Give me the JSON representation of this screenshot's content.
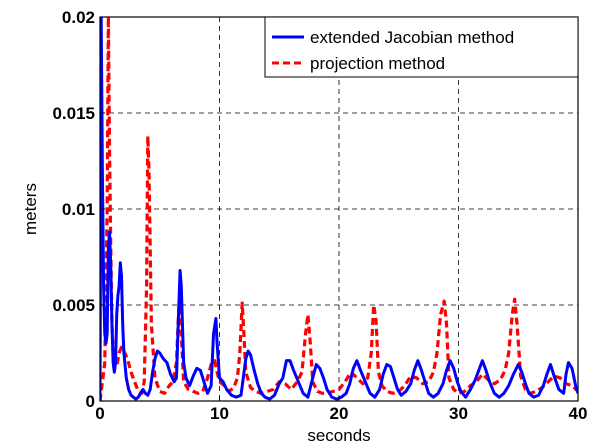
{
  "chart_data": {
    "type": "line",
    "xlabel": "seconds",
    "ylabel": "meters",
    "xlim": [
      0,
      40
    ],
    "ylim": [
      0,
      0.02
    ],
    "x_ticks": [
      0,
      10,
      20,
      30,
      40
    ],
    "x_tick_labels": [
      "0",
      "10",
      "20",
      "30",
      "40"
    ],
    "y_ticks": [
      0,
      0.005,
      0.01,
      0.015,
      0.02
    ],
    "y_tick_labels": [
      "0",
      "0.005",
      "0.01",
      "0.015",
      "0.02"
    ],
    "grid": true,
    "legend_position": "top-right",
    "series": [
      {
        "name": "extended Jacobian method",
        "color": "#0000ff",
        "style": "solid",
        "x": [
          0.0,
          0.1,
          0.2,
          0.3,
          0.4,
          0.5,
          0.6,
          0.7,
          0.8,
          0.9,
          1.0,
          1.1,
          1.2,
          1.3,
          1.4,
          1.5,
          1.6,
          1.7,
          1.8,
          1.9,
          2.0,
          2.2,
          2.4,
          2.6,
          2.8,
          3.0,
          3.2,
          3.4,
          3.6,
          3.8,
          4.0,
          4.2,
          4.4,
          4.6,
          4.8,
          5.0,
          5.3,
          5.6,
          5.9,
          6.2,
          6.4,
          6.6,
          6.7,
          6.8,
          7.0,
          7.2,
          7.5,
          7.8,
          8.1,
          8.4,
          8.7,
          9.0,
          9.3,
          9.5,
          9.7,
          9.8,
          10.0,
          10.3,
          10.6,
          11.0,
          11.4,
          11.8,
          12.2,
          12.4,
          12.6,
          12.9,
          13.2,
          13.5,
          13.8,
          14.2,
          14.6,
          15.0,
          15.3,
          15.6,
          15.9,
          16.2,
          16.6,
          17.0,
          17.4,
          17.8,
          18.1,
          18.4,
          18.7,
          19.0,
          19.4,
          19.8,
          20.2,
          20.6,
          20.9,
          21.2,
          21.5,
          21.8,
          22.2,
          22.6,
          23.0,
          23.4,
          23.7,
          24.0,
          24.3,
          24.6,
          24.9,
          25.2,
          25.6,
          26.0,
          26.3,
          26.6,
          26.9,
          27.2,
          27.5,
          27.9,
          28.3,
          28.7,
          29.0,
          29.3,
          29.6,
          29.9,
          30.2,
          30.6,
          31.0,
          31.4,
          31.7,
          32.0,
          32.3,
          32.6,
          33.0,
          33.4,
          33.8,
          34.2,
          34.6,
          35.0,
          35.3,
          35.6,
          35.9,
          36.3,
          36.7,
          37.1,
          37.4,
          37.7,
          38.0,
          38.4,
          38.8,
          39.0,
          39.2,
          39.5,
          39.8,
          40.0
        ],
        "y": [
          0.0,
          0.02,
          0.012,
          0.006,
          0.0035,
          0.003,
          0.0035,
          0.008,
          0.0088,
          0.007,
          0.004,
          0.002,
          0.0015,
          0.002,
          0.0045,
          0.0055,
          0.006,
          0.0072,
          0.0065,
          0.004,
          0.0025,
          0.0012,
          0.0006,
          0.0003,
          0.0002,
          0.0001,
          0.0002,
          0.0004,
          0.0006,
          0.0004,
          0.0003,
          0.0006,
          0.0015,
          0.0022,
          0.0026,
          0.0025,
          0.0022,
          0.002,
          0.0014,
          0.001,
          0.0012,
          0.005,
          0.0068,
          0.006,
          0.002,
          0.0012,
          0.0008,
          0.0013,
          0.0017,
          0.0016,
          0.001,
          0.0004,
          0.0008,
          0.0035,
          0.0043,
          0.003,
          0.0012,
          0.001,
          0.0006,
          0.0003,
          0.0002,
          0.0003,
          0.0022,
          0.0026,
          0.0024,
          0.0016,
          0.0009,
          0.0004,
          0.0002,
          0.0001,
          0.0003,
          0.0009,
          0.0012,
          0.0021,
          0.0021,
          0.0016,
          0.001,
          0.0004,
          0.0002,
          0.0012,
          0.0019,
          0.0017,
          0.0012,
          0.0006,
          0.0002,
          0.0001,
          0.0002,
          0.0004,
          0.0009,
          0.0017,
          0.0021,
          0.0016,
          0.001,
          0.0004,
          0.0002,
          0.0006,
          0.0014,
          0.0019,
          0.0018,
          0.0012,
          0.0006,
          0.0003,
          0.0005,
          0.0009,
          0.0016,
          0.0021,
          0.0016,
          0.001,
          0.0004,
          0.0002,
          0.0004,
          0.0009,
          0.0016,
          0.0021,
          0.0017,
          0.001,
          0.0005,
          0.0002,
          0.0006,
          0.0011,
          0.0016,
          0.0021,
          0.0016,
          0.001,
          0.0004,
          0.0002,
          0.0004,
          0.0008,
          0.0014,
          0.0019,
          0.0015,
          0.0009,
          0.0004,
          0.0002,
          0.0003,
          0.0008,
          0.0014,
          0.0019,
          0.0013,
          0.0006,
          0.0004,
          0.0014,
          0.002,
          0.0017,
          0.0008,
          0.0004
        ]
      },
      {
        "name": "projection method",
        "color": "#ff0000",
        "style": "dashed",
        "x": [
          0.0,
          0.2,
          0.4,
          0.6,
          0.7,
          0.8,
          0.9,
          1.0,
          1.1,
          1.2,
          1.4,
          1.6,
          1.8,
          2.0,
          2.3,
          2.6,
          2.9,
          3.2,
          3.5,
          3.7,
          3.9,
          4.0,
          4.1,
          4.3,
          4.6,
          5.0,
          5.4,
          5.8,
          6.1,
          6.4,
          6.6,
          6.8,
          7.0,
          7.4,
          7.8,
          8.2,
          8.6,
          9.0,
          9.3,
          9.6,
          9.8,
          10.0,
          10.4,
          10.8,
          11.2,
          11.5,
          11.7,
          11.9,
          12.0,
          12.2,
          12.6,
          13.0,
          13.5,
          14.0,
          14.5,
          15.0,
          15.5,
          16.0,
          16.5,
          16.9,
          17.2,
          17.4,
          17.6,
          17.8,
          18.2,
          18.6,
          19.0,
          19.5,
          20.0,
          20.5,
          21.0,
          21.5,
          22.0,
          22.4,
          22.7,
          22.9,
          23.1,
          23.3,
          23.6,
          24.0,
          24.5,
          25.0,
          25.5,
          26.0,
          26.5,
          27.0,
          27.5,
          27.9,
          28.2,
          28.5,
          28.8,
          29.0,
          29.2,
          29.6,
          30.0,
          30.5,
          31.0,
          31.5,
          32.0,
          32.5,
          33.0,
          33.5,
          33.9,
          34.2,
          34.5,
          34.7,
          34.9,
          35.2,
          35.6,
          36.0,
          36.5,
          37.0,
          37.5,
          38.0,
          38.5,
          39.0,
          39.5,
          40.0
        ],
        "y": [
          0.0,
          0.001,
          0.002,
          0.01,
          0.02,
          0.013,
          0.008,
          0.004,
          0.0025,
          0.002,
          0.0018,
          0.0025,
          0.0028,
          0.0026,
          0.0022,
          0.0015,
          0.001,
          0.0005,
          0.0004,
          0.001,
          0.006,
          0.0138,
          0.012,
          0.004,
          0.0012,
          0.0005,
          0.0004,
          0.0008,
          0.001,
          0.002,
          0.005,
          0.0035,
          0.001,
          0.0006,
          0.0005,
          0.0004,
          0.0005,
          0.0012,
          0.0019,
          0.0021,
          0.0015,
          0.001,
          0.0008,
          0.0005,
          0.0007,
          0.0012,
          0.0025,
          0.0051,
          0.004,
          0.0015,
          0.0007,
          0.0005,
          0.0004,
          0.0005,
          0.0006,
          0.001,
          0.0009,
          0.0006,
          0.001,
          0.0015,
          0.0035,
          0.0045,
          0.003,
          0.001,
          0.0005,
          0.0004,
          0.0004,
          0.0005,
          0.0006,
          0.001,
          0.0015,
          0.0012,
          0.0009,
          0.0012,
          0.0025,
          0.005,
          0.0042,
          0.0015,
          0.0008,
          0.0005,
          0.0004,
          0.0005,
          0.0008,
          0.0013,
          0.0012,
          0.0009,
          0.001,
          0.0015,
          0.0025,
          0.0045,
          0.0052,
          0.004,
          0.0012,
          0.0006,
          0.0004,
          0.0005,
          0.0008,
          0.001,
          0.0014,
          0.0011,
          0.0009,
          0.0011,
          0.0016,
          0.0025,
          0.0045,
          0.0053,
          0.004,
          0.0013,
          0.0006,
          0.0004,
          0.0005,
          0.0007,
          0.001,
          0.0013,
          0.0012,
          0.0009,
          0.0008,
          0.0005
        ]
      }
    ]
  }
}
